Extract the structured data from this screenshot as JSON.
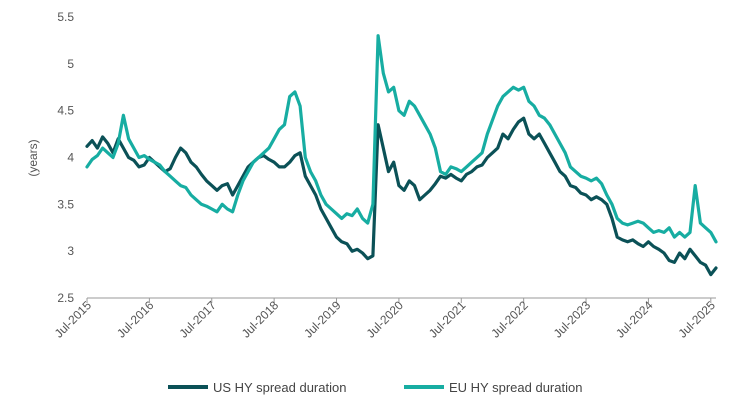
{
  "chart_data": {
    "type": "line",
    "title": "",
    "xlabel": "",
    "ylabel": "(years)",
    "ylim": [
      2.5,
      5.5
    ],
    "yticks": [
      "2.5",
      "3",
      "3.5",
      "4",
      "4.5",
      "5",
      "5.5"
    ],
    "xlim": [
      "2015-07",
      "2025-08"
    ],
    "xticks": [
      "Jul-2015",
      "Jul-2016",
      "Jul-2017",
      "Jul-2018",
      "Jul-2019",
      "Jul-2020",
      "Jul-2021",
      "Jul-2022",
      "Jul-2023",
      "Jul-2024",
      "Jul-2025"
    ],
    "grid": false,
    "legend_position": "bottom",
    "series": [
      {
        "name": "US HY spread duration",
        "color": "#0b5157",
        "points": [
          [
            "2015-07",
            4.12
          ],
          [
            "2015-08",
            4.18
          ],
          [
            "2015-09",
            4.1
          ],
          [
            "2015-10",
            4.22
          ],
          [
            "2015-11",
            4.15
          ],
          [
            "2015-12",
            4.05
          ],
          [
            "2016-01",
            4.2
          ],
          [
            "2016-02",
            4.1
          ],
          [
            "2016-03",
            4.0
          ],
          [
            "2016-04",
            3.97
          ],
          [
            "2016-05",
            3.9
          ],
          [
            "2016-06",
            3.92
          ],
          [
            "2016-07",
            4.0
          ],
          [
            "2016-08",
            3.95
          ],
          [
            "2016-09",
            3.9
          ],
          [
            "2016-10",
            3.85
          ],
          [
            "2016-11",
            3.88
          ],
          [
            "2016-12",
            4.0
          ],
          [
            "2017-01",
            4.1
          ],
          [
            "2017-02",
            4.05
          ],
          [
            "2017-03",
            3.95
          ],
          [
            "2017-04",
            3.9
          ],
          [
            "2017-05",
            3.82
          ],
          [
            "2017-06",
            3.75
          ],
          [
            "2017-07",
            3.7
          ],
          [
            "2017-08",
            3.65
          ],
          [
            "2017-09",
            3.7
          ],
          [
            "2017-10",
            3.72
          ],
          [
            "2017-11",
            3.6
          ],
          [
            "2017-12",
            3.7
          ],
          [
            "2018-01",
            3.8
          ],
          [
            "2018-02",
            3.9
          ],
          [
            "2018-03",
            3.95
          ],
          [
            "2018-04",
            4.0
          ],
          [
            "2018-05",
            4.02
          ],
          [
            "2018-06",
            3.98
          ],
          [
            "2018-07",
            3.95
          ],
          [
            "2018-08",
            3.9
          ],
          [
            "2018-09",
            3.9
          ],
          [
            "2018-10",
            3.95
          ],
          [
            "2018-11",
            4.02
          ],
          [
            "2018-12",
            4.05
          ],
          [
            "2019-01",
            3.8
          ],
          [
            "2019-02",
            3.7
          ],
          [
            "2019-03",
            3.6
          ],
          [
            "2019-04",
            3.45
          ],
          [
            "2019-05",
            3.35
          ],
          [
            "2019-06",
            3.25
          ],
          [
            "2019-07",
            3.15
          ],
          [
            "2019-08",
            3.1
          ],
          [
            "2019-09",
            3.08
          ],
          [
            "2019-10",
            3.0
          ],
          [
            "2019-11",
            3.02
          ],
          [
            "2019-12",
            2.98
          ],
          [
            "2020-01",
            2.92
          ],
          [
            "2020-02",
            2.95
          ],
          [
            "2020-03",
            4.35
          ],
          [
            "2020-04",
            4.1
          ],
          [
            "2020-05",
            3.85
          ],
          [
            "2020-06",
            3.95
          ],
          [
            "2020-07",
            3.7
          ],
          [
            "2020-08",
            3.65
          ],
          [
            "2020-09",
            3.75
          ],
          [
            "2020-10",
            3.7
          ],
          [
            "2020-11",
            3.55
          ],
          [
            "2020-12",
            3.6
          ],
          [
            "2021-01",
            3.65
          ],
          [
            "2021-02",
            3.72
          ],
          [
            "2021-03",
            3.8
          ],
          [
            "2021-04",
            3.78
          ],
          [
            "2021-05",
            3.82
          ],
          [
            "2021-06",
            3.78
          ],
          [
            "2021-07",
            3.75
          ],
          [
            "2021-08",
            3.82
          ],
          [
            "2021-09",
            3.85
          ],
          [
            "2021-10",
            3.9
          ],
          [
            "2021-11",
            3.92
          ],
          [
            "2021-12",
            4.0
          ],
          [
            "2022-01",
            4.05
          ],
          [
            "2022-02",
            4.1
          ],
          [
            "2022-03",
            4.25
          ],
          [
            "2022-04",
            4.2
          ],
          [
            "2022-05",
            4.3
          ],
          [
            "2022-06",
            4.38
          ],
          [
            "2022-07",
            4.42
          ],
          [
            "2022-08",
            4.25
          ],
          [
            "2022-09",
            4.2
          ],
          [
            "2022-10",
            4.25
          ],
          [
            "2022-11",
            4.15
          ],
          [
            "2022-12",
            4.05
          ],
          [
            "2023-01",
            3.95
          ],
          [
            "2023-02",
            3.85
          ],
          [
            "2023-03",
            3.8
          ],
          [
            "2023-04",
            3.7
          ],
          [
            "2023-05",
            3.68
          ],
          [
            "2023-06",
            3.62
          ],
          [
            "2023-07",
            3.6
          ],
          [
            "2023-08",
            3.55
          ],
          [
            "2023-09",
            3.58
          ],
          [
            "2023-10",
            3.55
          ],
          [
            "2023-11",
            3.5
          ],
          [
            "2023-12",
            3.35
          ],
          [
            "2024-01",
            3.15
          ],
          [
            "2024-02",
            3.12
          ],
          [
            "2024-03",
            3.1
          ],
          [
            "2024-04",
            3.12
          ],
          [
            "2024-05",
            3.08
          ],
          [
            "2024-06",
            3.05
          ],
          [
            "2024-07",
            3.1
          ],
          [
            "2024-08",
            3.05
          ],
          [
            "2024-09",
            3.02
          ],
          [
            "2024-10",
            2.98
          ],
          [
            "2024-11",
            2.9
          ],
          [
            "2024-12",
            2.88
          ],
          [
            "2025-01",
            2.98
          ],
          [
            "2025-02",
            2.92
          ],
          [
            "2025-03",
            3.02
          ],
          [
            "2025-04",
            2.95
          ],
          [
            "2025-05",
            2.88
          ],
          [
            "2025-06",
            2.85
          ],
          [
            "2025-07",
            2.75
          ],
          [
            "2025-08",
            2.82
          ]
        ]
      },
      {
        "name": "EU HY spread duration",
        "color": "#17ada2",
        "points": [
          [
            "2015-07",
            3.9
          ],
          [
            "2015-08",
            3.98
          ],
          [
            "2015-09",
            4.02
          ],
          [
            "2015-10",
            4.1
          ],
          [
            "2015-11",
            4.05
          ],
          [
            "2015-12",
            4.0
          ],
          [
            "2016-01",
            4.15
          ],
          [
            "2016-02",
            4.45
          ],
          [
            "2016-03",
            4.2
          ],
          [
            "2016-04",
            4.1
          ],
          [
            "2016-05",
            4.0
          ],
          [
            "2016-06",
            4.02
          ],
          [
            "2016-07",
            3.98
          ],
          [
            "2016-08",
            3.95
          ],
          [
            "2016-09",
            3.92
          ],
          [
            "2016-10",
            3.85
          ],
          [
            "2016-11",
            3.8
          ],
          [
            "2016-12",
            3.75
          ],
          [
            "2017-01",
            3.7
          ],
          [
            "2017-02",
            3.68
          ],
          [
            "2017-03",
            3.6
          ],
          [
            "2017-04",
            3.55
          ],
          [
            "2017-05",
            3.5
          ],
          [
            "2017-06",
            3.48
          ],
          [
            "2017-07",
            3.45
          ],
          [
            "2017-08",
            3.42
          ],
          [
            "2017-09",
            3.5
          ],
          [
            "2017-10",
            3.45
          ],
          [
            "2017-11",
            3.42
          ],
          [
            "2017-12",
            3.6
          ],
          [
            "2018-01",
            3.75
          ],
          [
            "2018-02",
            3.85
          ],
          [
            "2018-03",
            3.95
          ],
          [
            "2018-04",
            4.0
          ],
          [
            "2018-05",
            4.05
          ],
          [
            "2018-06",
            4.1
          ],
          [
            "2018-07",
            4.2
          ],
          [
            "2018-08",
            4.3
          ],
          [
            "2018-09",
            4.35
          ],
          [
            "2018-10",
            4.65
          ],
          [
            "2018-11",
            4.7
          ],
          [
            "2018-12",
            4.55
          ],
          [
            "2019-01",
            4.0
          ],
          [
            "2019-02",
            3.85
          ],
          [
            "2019-03",
            3.75
          ],
          [
            "2019-04",
            3.6
          ],
          [
            "2019-05",
            3.5
          ],
          [
            "2019-06",
            3.45
          ],
          [
            "2019-07",
            3.4
          ],
          [
            "2019-08",
            3.35
          ],
          [
            "2019-09",
            3.4
          ],
          [
            "2019-10",
            3.38
          ],
          [
            "2019-11",
            3.45
          ],
          [
            "2019-12",
            3.35
          ],
          [
            "2020-01",
            3.3
          ],
          [
            "2020-02",
            3.5
          ],
          [
            "2020-03",
            5.3
          ],
          [
            "2020-04",
            4.9
          ],
          [
            "2020-05",
            4.7
          ],
          [
            "2020-06",
            4.75
          ],
          [
            "2020-07",
            4.5
          ],
          [
            "2020-08",
            4.45
          ],
          [
            "2020-09",
            4.6
          ],
          [
            "2020-10",
            4.55
          ],
          [
            "2020-11",
            4.45
          ],
          [
            "2020-12",
            4.35
          ],
          [
            "2021-01",
            4.25
          ],
          [
            "2021-02",
            4.1
          ],
          [
            "2021-03",
            3.85
          ],
          [
            "2021-04",
            3.82
          ],
          [
            "2021-05",
            3.9
          ],
          [
            "2021-06",
            3.88
          ],
          [
            "2021-07",
            3.85
          ],
          [
            "2021-08",
            3.9
          ],
          [
            "2021-09",
            3.95
          ],
          [
            "2021-10",
            4.0
          ],
          [
            "2021-11",
            4.05
          ],
          [
            "2021-12",
            4.25
          ],
          [
            "2022-01",
            4.4
          ],
          [
            "2022-02",
            4.55
          ],
          [
            "2022-03",
            4.65
          ],
          [
            "2022-04",
            4.7
          ],
          [
            "2022-05",
            4.75
          ],
          [
            "2022-06",
            4.72
          ],
          [
            "2022-07",
            4.75
          ],
          [
            "2022-08",
            4.6
          ],
          [
            "2022-09",
            4.55
          ],
          [
            "2022-10",
            4.45
          ],
          [
            "2022-11",
            4.42
          ],
          [
            "2022-12",
            4.35
          ],
          [
            "2023-01",
            4.25
          ],
          [
            "2023-02",
            4.15
          ],
          [
            "2023-03",
            4.05
          ],
          [
            "2023-04",
            3.9
          ],
          [
            "2023-05",
            3.85
          ],
          [
            "2023-06",
            3.8
          ],
          [
            "2023-07",
            3.78
          ],
          [
            "2023-08",
            3.75
          ],
          [
            "2023-09",
            3.78
          ],
          [
            "2023-10",
            3.72
          ],
          [
            "2023-11",
            3.6
          ],
          [
            "2023-12",
            3.5
          ],
          [
            "2024-01",
            3.35
          ],
          [
            "2024-02",
            3.3
          ],
          [
            "2024-03",
            3.28
          ],
          [
            "2024-04",
            3.3
          ],
          [
            "2024-05",
            3.32
          ],
          [
            "2024-06",
            3.3
          ],
          [
            "2024-07",
            3.25
          ],
          [
            "2024-08",
            3.2
          ],
          [
            "2024-09",
            3.22
          ],
          [
            "2024-10",
            3.2
          ],
          [
            "2024-11",
            3.25
          ],
          [
            "2024-12",
            3.15
          ],
          [
            "2025-01",
            3.2
          ],
          [
            "2025-02",
            3.15
          ],
          [
            "2025-03",
            3.2
          ],
          [
            "2025-04",
            3.7
          ],
          [
            "2025-05",
            3.3
          ],
          [
            "2025-06",
            3.25
          ],
          [
            "2025-07",
            3.2
          ],
          [
            "2025-08",
            3.1
          ]
        ]
      }
    ]
  }
}
